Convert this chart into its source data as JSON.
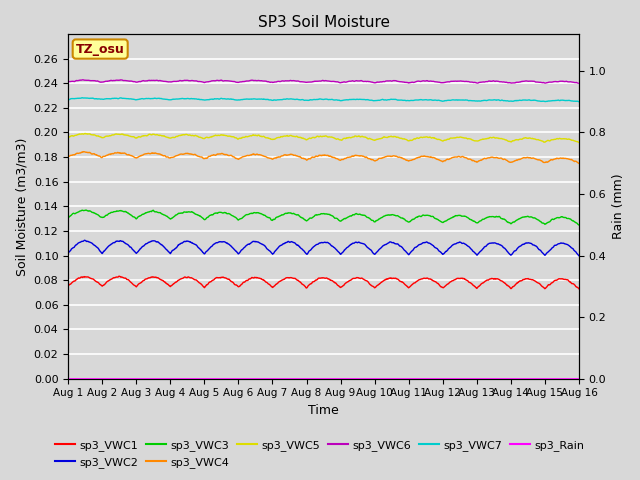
{
  "title": "SP3 Soil Moisture",
  "xlabel": "Time",
  "ylabel_left": "Soil Moisture (m3/m3)",
  "ylabel_right": "Rain (mm)",
  "ylim_left": [
    0.0,
    0.28
  ],
  "ylim_right": [
    0.0,
    1.12
  ],
  "yticks_left": [
    0.0,
    0.02,
    0.04,
    0.06,
    0.08,
    0.1,
    0.12,
    0.14,
    0.16,
    0.18,
    0.2,
    0.22,
    0.24,
    0.26
  ],
  "yticks_right": [
    0.0,
    0.2,
    0.4,
    0.6,
    0.8,
    1.0
  ],
  "background_color": "#d8d8d8",
  "axes_background": "#d8d8d8",
  "grid_color": "#ffffff",
  "annotation_text": "TZ_osu",
  "annotation_bg": "#ffff99",
  "annotation_border": "#cc8800",
  "series_order": [
    "sp3_VWC1",
    "sp3_VWC2",
    "sp3_VWC3",
    "sp3_VWC4",
    "sp3_VWC5",
    "sp3_VWC6",
    "sp3_VWC7"
  ],
  "series": {
    "sp3_VWC1": {
      "color": "#ff0000",
      "base": 0.075,
      "amplitude": 0.008,
      "trend": -0.002,
      "noise": 0.0005
    },
    "sp3_VWC2": {
      "color": "#0000dd",
      "base": 0.102,
      "amplitude": 0.01,
      "trend": -0.002,
      "noise": 0.0005
    },
    "sp3_VWC3": {
      "color": "#00cc00",
      "base": 0.131,
      "amplitude": 0.006,
      "trend": -0.006,
      "noise": 0.0005
    },
    "sp3_VWC4": {
      "color": "#ff8800",
      "base": 0.18,
      "amplitude": 0.004,
      "trend": -0.005,
      "noise": 0.0005
    },
    "sp3_VWC5": {
      "color": "#dddd00",
      "base": 0.196,
      "amplitude": 0.003,
      "trend": -0.004,
      "noise": 0.0005
    },
    "sp3_VWC6": {
      "color": "#bb00bb",
      "base": 0.241,
      "amplitude": 0.0015,
      "trend": -0.001,
      "noise": 0.0003
    },
    "sp3_VWC7": {
      "color": "#00cccc",
      "base": 0.227,
      "amplitude": 0.001,
      "trend": -0.002,
      "noise": 0.0003
    }
  },
  "rain_color": "#ff00ff",
  "legend_entries": [
    {
      "label": "sp3_VWC1",
      "color": "#ff0000"
    },
    {
      "label": "sp3_VWC2",
      "color": "#0000dd"
    },
    {
      "label": "sp3_VWC3",
      "color": "#00cc00"
    },
    {
      "label": "sp3_VWC4",
      "color": "#ff8800"
    },
    {
      "label": "sp3_VWC5",
      "color": "#dddd00"
    },
    {
      "label": "sp3_VWC6",
      "color": "#bb00bb"
    },
    {
      "label": "sp3_VWC7",
      "color": "#00cccc"
    },
    {
      "label": "sp3_Rain",
      "color": "#ff00ff"
    }
  ],
  "n_points": 1440,
  "days": 15,
  "x_tick_labels": [
    "Aug 1",
    "Aug 2",
    "Aug 3",
    "Aug 4",
    "Aug 5",
    "Aug 6",
    "Aug 7",
    "Aug 8",
    "Aug 9",
    "Aug 10",
    "Aug 11",
    "Aug 12",
    "Aug 13",
    "Aug 14",
    "Aug 15",
    "Aug 16"
  ],
  "x_tick_positions": [
    0,
    1,
    2,
    3,
    4,
    5,
    6,
    7,
    8,
    9,
    10,
    11,
    12,
    13,
    14,
    15
  ]
}
